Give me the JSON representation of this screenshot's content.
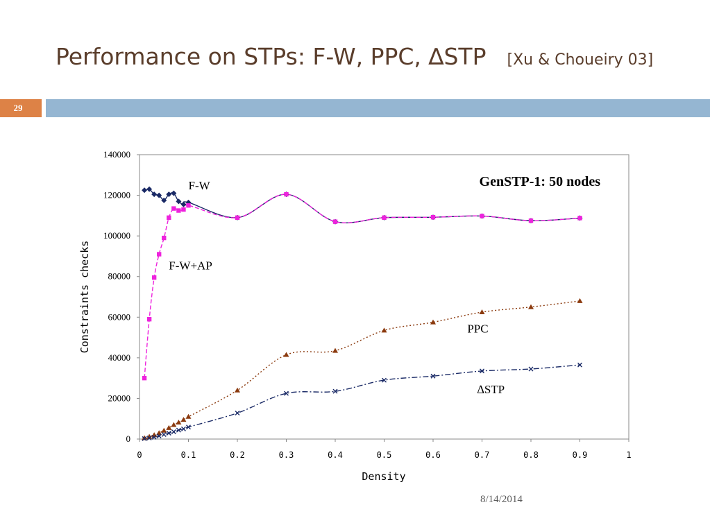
{
  "slide": {
    "title": "Performance on STPs: F-W, PPC, ∆STP",
    "citation": "[Xu & Choueiry 03]",
    "slide_number": "29",
    "date": "8/14/2014"
  },
  "colors": {
    "title": "#5a3d2b",
    "number_box": "#dd8246",
    "band": "#95b6d2"
  },
  "chart_data": {
    "type": "line",
    "title": "GenSTP-1: 50 nodes",
    "xlabel": "Density",
    "ylabel": "Constraints checks",
    "xlim": [
      0,
      1
    ],
    "ylim": [
      0,
      140000
    ],
    "xticks": [
      0,
      0.1,
      0.2,
      0.3,
      0.4,
      0.5,
      0.6,
      0.7,
      0.8,
      0.9,
      1
    ],
    "xtick_labels": [
      "0",
      "0.1",
      "0.2",
      "0.3",
      "0.4",
      "0.5",
      "0.6",
      "0.7",
      "0.8",
      "0.9",
      "1"
    ],
    "yticks": [
      0,
      20000,
      40000,
      60000,
      80000,
      100000,
      120000,
      140000
    ],
    "ytick_labels": [
      "0",
      "20000",
      "40000",
      "60000",
      "80000",
      "100000",
      "120000",
      "140000"
    ],
    "grid": false,
    "series": [
      {
        "name": "F-W",
        "color": "#1a2a66",
        "marker": "diamond",
        "line": "solid",
        "x": [
          0.01,
          0.02,
          0.03,
          0.04,
          0.05,
          0.06,
          0.07,
          0.08,
          0.09,
          0.1,
          0.2,
          0.3,
          0.4,
          0.5,
          0.6,
          0.7,
          0.8,
          0.9
        ],
        "y": [
          122500,
          123000,
          120500,
          120000,
          117500,
          120500,
          121000,
          117000,
          115500,
          116500,
          109000,
          120500,
          107000,
          109000,
          109200,
          109800,
          107500,
          108800
        ]
      },
      {
        "name": "F-W+AP",
        "color": "#ee22dd",
        "marker": "square",
        "line": "dashed",
        "x": [
          0.01,
          0.02,
          0.03,
          0.04,
          0.05,
          0.06,
          0.07,
          0.08,
          0.09,
          0.1,
          0.2,
          0.3,
          0.4,
          0.5,
          0.6,
          0.7,
          0.8,
          0.9
        ],
        "y": [
          30000,
          59000,
          79500,
          91000,
          99000,
          109000,
          113500,
          112500,
          113000,
          115000,
          109000,
          120500,
          107000,
          109000,
          109200,
          109800,
          107500,
          108800
        ]
      },
      {
        "name": "PPC",
        "color": "#8b3a0e",
        "marker": "triangle",
        "line": "dotted",
        "x": [
          0.01,
          0.02,
          0.03,
          0.04,
          0.05,
          0.06,
          0.07,
          0.08,
          0.09,
          0.1,
          0.2,
          0.3,
          0.4,
          0.5,
          0.6,
          0.7,
          0.8,
          0.9
        ],
        "y": [
          500,
          1200,
          2000,
          3000,
          4200,
          5500,
          7000,
          8200,
          9500,
          11000,
          24000,
          41500,
          43500,
          53500,
          57500,
          62500,
          65000,
          68000
        ]
      },
      {
        "name": "∆STP",
        "color": "#1a2a66",
        "marker": "x",
        "line": "dashdot",
        "x": [
          0.01,
          0.02,
          0.03,
          0.04,
          0.05,
          0.06,
          0.07,
          0.08,
          0.09,
          0.1,
          0.2,
          0.3,
          0.4,
          0.5,
          0.6,
          0.7,
          0.8,
          0.9
        ],
        "y": [
          200,
          500,
          900,
          1500,
          2200,
          2900,
          3600,
          4400,
          5000,
          5900,
          12800,
          22500,
          23500,
          29000,
          31000,
          33500,
          34500,
          36500
        ]
      }
    ],
    "annotations": [
      {
        "text": "F-W",
        "x": 0.1,
        "y": 123000
      },
      {
        "text": "F-W+AP",
        "x": 0.06,
        "y": 83500
      },
      {
        "text": "PPC",
        "x": 0.67,
        "y": 52500
      },
      {
        "text": "∆STP",
        "x": 0.69,
        "y": 22500
      }
    ]
  }
}
